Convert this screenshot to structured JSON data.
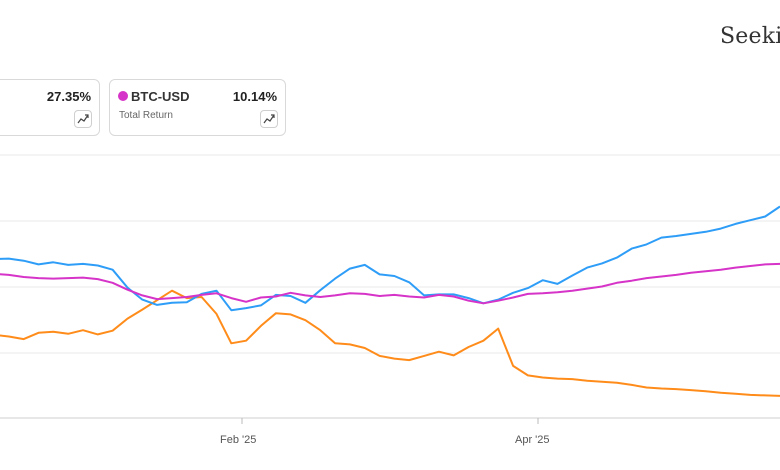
{
  "header": {
    "brand": "Seekin"
  },
  "legend_cards": [
    {
      "name": "",
      "value": "27.35%",
      "subtitle": "",
      "color": "#ff8c1a",
      "icon": "trend-icon"
    },
    {
      "name": "BTC-USD",
      "value": "10.14%",
      "subtitle": "Total Return",
      "color": "#d633c8",
      "icon": "trend-icon"
    }
  ],
  "chart_data": {
    "type": "line",
    "title": "",
    "xlabel": "",
    "ylabel": "",
    "x_tick_labels": [
      "Feb '25",
      "Apr '25"
    ],
    "y_tick_labels": [],
    "grid": true,
    "x": [
      "Jan 3 '25",
      "Jan 6 '25",
      "Jan 8 '25",
      "Jan 10 '25",
      "Jan 13 '25",
      "Jan 15 '25",
      "Jan 17 '25",
      "Jan 20 '25",
      "Jan 22 '25",
      "Jan 24 '25",
      "Jan 27 '25",
      "Jan 29 '25",
      "Jan 31 '25",
      "Feb 3 '25",
      "Feb 5 '25",
      "Feb 7 '25",
      "Feb 10 '25",
      "Feb 12 '25",
      "Feb 14 '25",
      "Feb 17 '25",
      "Feb 19 '25",
      "Feb 21 '25",
      "Feb 24 '25",
      "Feb 26 '25",
      "Feb 28 '25",
      "Mar 3 '25",
      "Mar 5 '25",
      "Mar 7 '25",
      "Mar 10 '25",
      "Mar 12 '25",
      "Mar 14 '25",
      "Mar 17 '25",
      "Mar 19 '25",
      "Mar 21 '25",
      "Mar 24 '25",
      "Mar 26 '25",
      "Mar 28 '25",
      "Mar 31 '25",
      "Apr 2 '25",
      "Apr 4 '25",
      "Apr 7 '25",
      "Apr 9 '25",
      "Apr 11 '25",
      "Apr 14 '25",
      "Apr 16 '25",
      "Apr 18 '25",
      "Apr 21 '25",
      "Apr 23 '25",
      "Apr 25 '25",
      "Apr 28 '25",
      "Apr 30 '25",
      "May 2 '25",
      "May 5 '25",
      "May 7 '25"
    ],
    "series": [
      {
        "name": "",
        "color": "#2e9df7",
        "values": [
          25.2,
          25.3,
          24.9,
          24.2,
          24.6,
          24.1,
          24.3,
          24.0,
          23.2,
          19.8,
          17.5,
          16.5,
          16.9,
          17.0,
          18.6,
          19.2,
          15.5,
          15.9,
          16.4,
          18.4,
          18.2,
          16.9,
          19.3,
          21.5,
          23.4,
          24.1,
          22.3,
          22.0,
          20.8,
          18.3,
          18.5,
          18.5,
          17.8,
          16.8,
          17.5,
          18.8,
          19.7,
          21.2,
          20.5,
          22.1,
          23.6,
          24.4,
          25.5,
          27.2,
          28.0,
          29.3,
          29.6,
          30.0,
          30.4,
          31.0,
          31.9,
          32.6,
          33.3,
          35.2
        ]
      },
      {
        "name": "BTC-USD",
        "color": "#d633c8",
        "values": [
          22.4,
          22.2,
          21.8,
          21.6,
          21.5,
          21.6,
          21.7,
          21.4,
          20.7,
          19.4,
          18.3,
          17.6,
          17.8,
          18.0,
          18.4,
          18.7,
          17.8,
          17.1,
          17.9,
          18.1,
          18.8,
          18.3,
          18.0,
          18.3,
          18.7,
          18.6,
          18.2,
          18.4,
          18.1,
          17.9,
          18.4,
          18.1,
          17.3,
          16.8,
          17.3,
          17.9,
          18.6,
          18.7,
          18.9,
          19.2,
          19.6,
          20.0,
          20.7,
          21.1,
          21.6,
          21.9,
          22.2,
          22.6,
          22.9,
          23.2,
          23.6,
          23.9,
          24.2,
          24.3
        ]
      },
      {
        "name": "",
        "color": "#ff8c1a",
        "values": [
          10.8,
          10.5,
          10.0,
          11.2,
          11.4,
          11.0,
          11.7,
          10.9,
          11.6,
          13.9,
          15.6,
          17.4,
          19.2,
          17.8,
          18.0,
          14.8,
          9.2,
          9.7,
          12.5,
          14.9,
          14.7,
          13.6,
          11.7,
          9.2,
          9.0,
          8.3,
          6.8,
          6.3,
          6.0,
          6.8,
          7.6,
          6.9,
          8.5,
          9.7,
          12.0,
          4.9,
          3.1,
          2.7,
          2.5,
          2.4,
          2.1,
          1.9,
          1.7,
          1.3,
          0.8,
          0.6,
          0.5,
          0.3,
          0.1,
          -0.2,
          -0.4,
          -0.6,
          -0.7,
          -0.8
        ]
      }
    ]
  }
}
